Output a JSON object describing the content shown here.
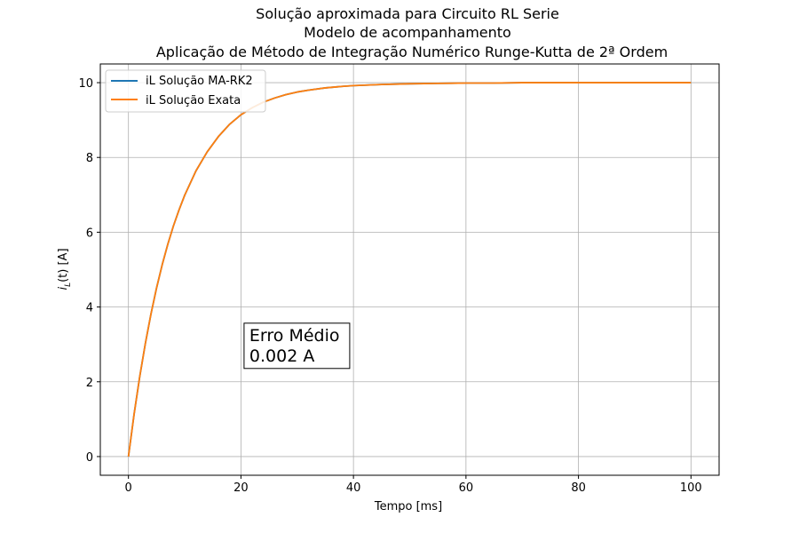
{
  "chart_data": {
    "type": "line",
    "title_lines": [
      "Solução aproximada para Circuito RL Serie",
      "Modelo de acompanhamento",
      "Aplicação de Método de Integração Numérico Runge-Kutta de 2ª Ordem"
    ],
    "xlabel": "Tempo [ms]",
    "ylabel_main": "i",
    "ylabel_sub": "L",
    "ylabel_tail": "(t) [A]",
    "xlim": [
      -5,
      105
    ],
    "ylim": [
      -0.5,
      10.5
    ],
    "x_ticks": [
      0,
      20,
      40,
      60,
      80,
      100
    ],
    "y_ticks": [
      0,
      2,
      4,
      6,
      8,
      10
    ],
    "grid": true,
    "legend_position": "top-left",
    "series": [
      {
        "name": "iL Solução MA-RK2",
        "color": "#1f77b4",
        "x": [
          0,
          1,
          2,
          3,
          4,
          5,
          6,
          7,
          8,
          9,
          10,
          12,
          14,
          16,
          18,
          20,
          22,
          24,
          26,
          28,
          30,
          32,
          35,
          38,
          40,
          45,
          50,
          55,
          60,
          65,
          70,
          75,
          80,
          85,
          90,
          95,
          100
        ],
        "y": [
          0,
          1.13,
          2.13,
          3.02,
          3.81,
          4.51,
          5.13,
          5.68,
          6.17,
          6.6,
          6.99,
          7.64,
          8.15,
          8.56,
          8.89,
          9.14,
          9.33,
          9.48,
          9.59,
          9.68,
          9.75,
          9.8,
          9.86,
          9.9,
          9.92,
          9.95,
          9.97,
          9.98,
          9.99,
          9.99,
          10.0,
          10.0,
          10.0,
          10.0,
          10.0,
          10.0,
          10.0
        ]
      },
      {
        "name": "iL Solução Exata",
        "color": "#ff7f0e",
        "x": [
          0,
          1,
          2,
          3,
          4,
          5,
          6,
          7,
          8,
          9,
          10,
          12,
          14,
          16,
          18,
          20,
          22,
          24,
          26,
          28,
          30,
          32,
          35,
          38,
          40,
          45,
          50,
          55,
          60,
          65,
          70,
          75,
          80,
          85,
          90,
          95,
          100
        ],
        "y": [
          0,
          1.13,
          2.13,
          3.02,
          3.81,
          4.51,
          5.13,
          5.68,
          6.17,
          6.6,
          6.99,
          7.64,
          8.15,
          8.56,
          8.89,
          9.14,
          9.33,
          9.48,
          9.59,
          9.68,
          9.75,
          9.8,
          9.86,
          9.9,
          9.92,
          9.95,
          9.97,
          9.98,
          9.99,
          9.99,
          10.0,
          10.0,
          10.0,
          10.0,
          10.0,
          10.0,
          10.0
        ]
      }
    ],
    "annotation": {
      "lines": [
        "Erro Médio",
        "0.002 A"
      ],
      "x": 21.5,
      "y": 2.95
    }
  }
}
